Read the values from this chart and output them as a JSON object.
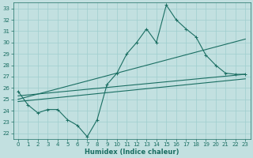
{
  "xlabel": "Humidex (Indice chaleur)",
  "ylabel": "",
  "background_color": "#c2e0e0",
  "grid_color": "#9fcece",
  "line_color": "#1a6e62",
  "xlim": [
    -0.5,
    23.5
  ],
  "ylim": [
    21.5,
    33.5
  ],
  "xticks": [
    0,
    1,
    2,
    3,
    4,
    5,
    6,
    7,
    8,
    9,
    10,
    11,
    12,
    13,
    14,
    15,
    16,
    17,
    18,
    19,
    20,
    21,
    22,
    23
  ],
  "yticks": [
    22,
    23,
    24,
    25,
    26,
    27,
    28,
    29,
    30,
    31,
    32,
    33
  ],
  "line1_x": [
    0,
    1,
    2,
    3,
    4,
    5,
    6,
    7,
    8,
    9,
    10,
    11,
    12,
    13,
    14,
    15,
    16,
    17,
    18,
    19,
    20,
    21,
    22,
    23
  ],
  "line1_y": [
    25.7,
    24.5,
    23.8,
    24.1,
    24.1,
    23.2,
    22.7,
    21.7,
    23.2,
    26.3,
    27.3,
    29.0,
    30.0,
    31.2,
    30.0,
    33.3,
    32.0,
    31.2,
    30.5,
    28.9,
    28.0,
    27.3,
    27.2,
    27.2
  ],
  "line2_x": [
    0,
    23
  ],
  "line2_y": [
    25.3,
    27.2
  ],
  "line3_x": [
    0,
    23
  ],
  "line3_y": [
    24.8,
    26.8
  ],
  "line4_x": [
    0,
    23
  ],
  "line4_y": [
    25.0,
    30.3
  ]
}
